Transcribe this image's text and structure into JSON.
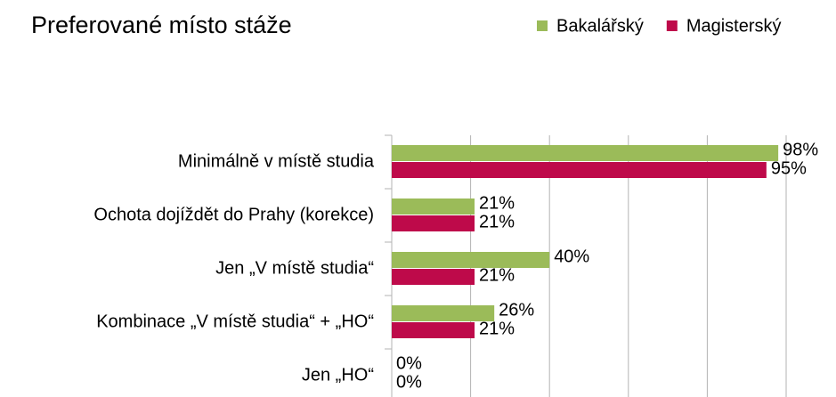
{
  "chart_data": {
    "type": "bar",
    "orientation": "horizontal",
    "title": "Preferované místo stáže",
    "categories": [
      "Minimálně v místě studia",
      "Ochota dojíždět do Prahy (korekce)",
      "Jen „V místě studia“",
      "Kombinace „V místě studia“ + „HO“",
      "Jen „HO“"
    ],
    "series": [
      {
        "name": "Bakalářský",
        "color": "#9bbb59",
        "values": [
          98,
          21,
          40,
          26,
          0
        ],
        "value_labels": [
          "98%",
          "21%",
          "40%",
          "26%",
          "0%"
        ]
      },
      {
        "name": "Magisterský",
        "color": "#be0a4a",
        "values": [
          95,
          21,
          21,
          21,
          0
        ],
        "value_labels": [
          "95%",
          "21%",
          "21%",
          "21%",
          "0%"
        ]
      }
    ],
    "xlim": [
      0,
      100
    ],
    "xticks": [
      0,
      20,
      40,
      60,
      80,
      100
    ],
    "grid": true,
    "legend": "top-right"
  }
}
